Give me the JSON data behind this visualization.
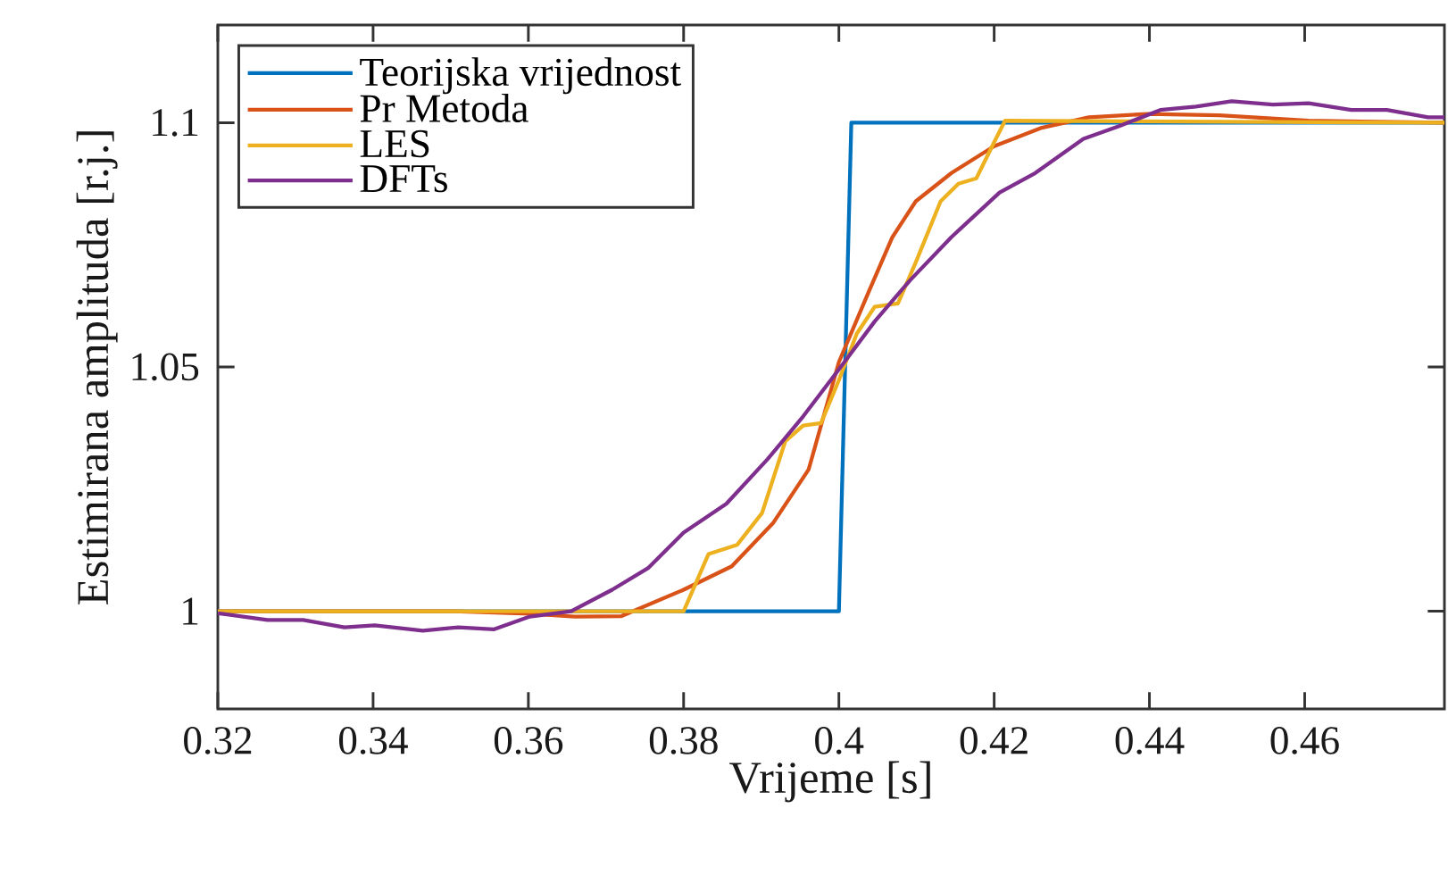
{
  "chart_data": {
    "type": "line",
    "xlabel": "Vrijeme [s]",
    "ylabel": "Estimirana amplituda [r.j.]",
    "xlim": [
      0.32,
      0.478
    ],
    "ylim": [
      0.98,
      1.12
    ],
    "xticks": [
      0.32,
      0.34,
      0.36,
      0.38,
      0.4,
      0.42,
      0.44,
      0.46
    ],
    "yticks": [
      1,
      1.05,
      1.1
    ],
    "grid": false,
    "legend": "top left",
    "marker": "none",
    "line_style": "solid",
    "series": [
      {
        "name": "Teorijska vrijednost",
        "color": "#0072bd",
        "x": [
          0.32,
          0.4,
          0.4016,
          0.478
        ],
        "values": [
          1,
          1,
          1.1,
          1.1
        ]
      },
      {
        "name": "Pr Metoda",
        "color": "#d95319",
        "x": [
          0.32,
          0.35,
          0.3602,
          0.366,
          0.372,
          0.38,
          0.3862,
          0.3915,
          0.3961,
          0.4,
          0.4039,
          0.4069,
          0.4099,
          0.4145,
          0.42,
          0.426,
          0.4322,
          0.4398,
          0.449,
          0.4605,
          0.478
        ],
        "values": [
          1,
          1,
          0.9995,
          0.9989,
          0.999,
          1.0044,
          1.0092,
          1.018,
          1.029,
          1.051,
          1.0656,
          1.0766,
          1.0839,
          1.0897,
          1.0952,
          1.0989,
          1.1011,
          1.1018,
          1.1015,
          1.1004,
          1.1
        ]
      },
      {
        "name": "LES",
        "color": "#edb120",
        "x": [
          0.32,
          0.38,
          0.3832,
          0.3869,
          0.3901,
          0.3931,
          0.3954,
          0.3977,
          0.4,
          0.4023,
          0.4046,
          0.4076,
          0.4099,
          0.4131,
          0.4154,
          0.4177,
          0.42,
          0.4214,
          0.478
        ],
        "values": [
          1,
          1,
          1.0117,
          1.0136,
          1.0201,
          1.0348,
          1.038,
          1.0385,
          1.0473,
          1.0568,
          1.0623,
          1.063,
          1.0714,
          1.0839,
          1.0875,
          1.0886,
          1.096,
          1.1004,
          1.1
        ]
      },
      {
        "name": "DFTs",
        "color": "#7e2f8e",
        "x": [
          0.32,
          0.3264,
          0.331,
          0.3363,
          0.3402,
          0.3464,
          0.351,
          0.3556,
          0.3602,
          0.3655,
          0.3708,
          0.3754,
          0.38,
          0.3855,
          0.3908,
          0.3954,
          0.4,
          0.4046,
          0.4092,
          0.4145,
          0.4207,
          0.4253,
          0.4315,
          0.4361,
          0.4414,
          0.446,
          0.4506,
          0.4559,
          0.4605,
          0.466,
          0.4706,
          0.4759,
          0.478
        ],
        "values": [
          0.9996,
          0.9982,
          0.9982,
          0.9967,
          0.9971,
          0.996,
          0.9967,
          0.9963,
          0.9989,
          1.0,
          1.0044,
          1.0088,
          1.0161,
          1.022,
          1.0311,
          1.0399,
          1.0495,
          1.0593,
          1.0678,
          1.0766,
          1.0857,
          1.0897,
          1.0967,
          1.0993,
          1.1026,
          1.1033,
          1.1044,
          1.1037,
          1.104,
          1.1026,
          1.1026,
          1.1011,
          1.1011
        ]
      }
    ]
  }
}
